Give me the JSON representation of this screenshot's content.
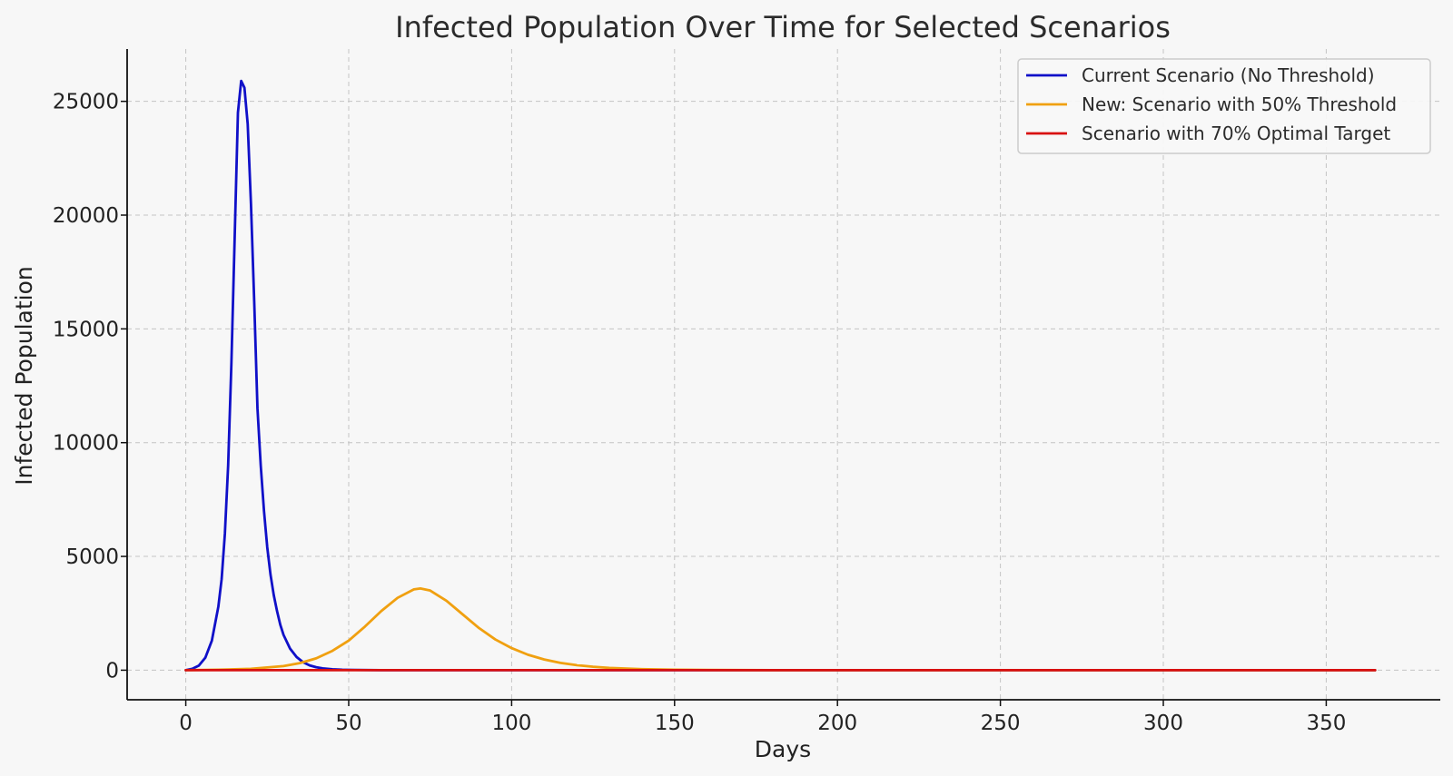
{
  "chart_data": {
    "type": "line",
    "title": "Infected Population Over Time for Selected Scenarios",
    "xlabel": "Days",
    "ylabel": "Infected Population",
    "xlim": [
      -18,
      385
    ],
    "ylim": [
      -1300,
      27300
    ],
    "xticks": [
      0,
      50,
      100,
      150,
      200,
      250,
      300,
      350
    ],
    "yticks": [
      0,
      5000,
      10000,
      15000,
      20000,
      25000
    ],
    "grid": true,
    "legend_position": "top-right",
    "series": [
      {
        "name": "Current Scenario (No Threshold)",
        "color": "#1010c8",
        "x": [
          0,
          2,
          4,
          6,
          8,
          10,
          11,
          12,
          13,
          14,
          15,
          16,
          17,
          18,
          19,
          20,
          21,
          22,
          23,
          24,
          25,
          26,
          27,
          28,
          29,
          30,
          32,
          34,
          36,
          38,
          40,
          42,
          45,
          48,
          52,
          56,
          60,
          70,
          80,
          100,
          150,
          200,
          250,
          300,
          365
        ],
        "y": [
          0,
          60,
          200,
          550,
          1300,
          2800,
          4000,
          6000,
          9000,
          13500,
          19000,
          24500,
          25900,
          25600,
          24000,
          20500,
          16200,
          11500,
          9000,
          7000,
          5400,
          4200,
          3300,
          2600,
          2000,
          1550,
          950,
          580,
          350,
          210,
          130,
          80,
          40,
          20,
          10,
          5,
          2,
          0,
          0,
          0,
          0,
          0,
          0,
          0,
          0
        ]
      },
      {
        "name": "New: Scenario with 50% Threshold",
        "color": "#f0a010",
        "x": [
          0,
          10,
          20,
          30,
          35,
          40,
          45,
          50,
          55,
          60,
          65,
          70,
          72,
          75,
          80,
          85,
          90,
          95,
          100,
          105,
          110,
          115,
          120,
          125,
          130,
          140,
          150,
          160,
          180,
          200,
          250,
          300,
          365
        ],
        "y": [
          0,
          20,
          60,
          180,
          310,
          520,
          850,
          1300,
          1920,
          2600,
          3180,
          3550,
          3590,
          3500,
          3050,
          2450,
          1850,
          1350,
          970,
          680,
          470,
          320,
          220,
          150,
          100,
          45,
          20,
          9,
          2,
          0,
          0,
          0,
          0
        ]
      },
      {
        "name": "Scenario with 70% Optimal Target",
        "color": "#d81010",
        "x": [
          0,
          50,
          100,
          150,
          200,
          250,
          300,
          365
        ],
        "y": [
          0,
          0,
          0,
          0,
          0,
          0,
          0,
          0
        ]
      }
    ]
  }
}
